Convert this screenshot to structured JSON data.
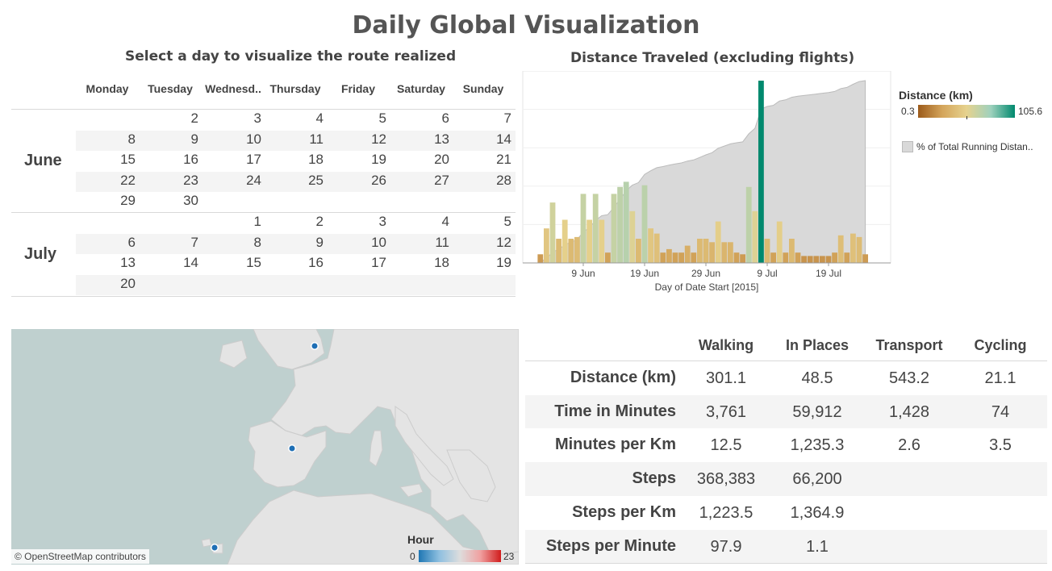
{
  "title": "Daily Global Visualization",
  "calendar": {
    "subtitle": "Select a day to visualize the route realized",
    "days": [
      "Monday",
      "Tuesday",
      "Wednesd..",
      "Thursday",
      "Friday",
      "Saturday",
      "Sunday"
    ],
    "months": [
      {
        "name": "June",
        "weeks": [
          [
            "",
            "2",
            "3",
            "4",
            "5",
            "6",
            "7"
          ],
          [
            "8",
            "9",
            "10",
            "11",
            "12",
            "13",
            "14"
          ],
          [
            "15",
            "16",
            "17",
            "18",
            "19",
            "20",
            "21"
          ],
          [
            "22",
            "23",
            "24",
            "25",
            "26",
            "27",
            "28"
          ],
          [
            "29",
            "30",
            "",
            "",
            "",
            "",
            ""
          ]
        ]
      },
      {
        "name": "July",
        "weeks": [
          [
            "",
            "",
            "1",
            "2",
            "3",
            "4",
            "5"
          ],
          [
            "6",
            "7",
            "8",
            "9",
            "10",
            "11",
            "12"
          ],
          [
            "13",
            "14",
            "15",
            "16",
            "17",
            "18",
            "19"
          ],
          [
            "20",
            "",
            "",
            "",
            "",
            "",
            ""
          ]
        ]
      }
    ]
  },
  "chart_data": {
    "type": "bar",
    "title": "Distance Traveled (excluding flights)",
    "xlabel": "Day of Date Start [2015]",
    "x_ticks": [
      "9 Jun",
      "19 Jun",
      "29 Jun",
      "9 Jul",
      "19 Jul"
    ],
    "start_date": "2015-06-02",
    "ylim": [
      0,
      105.6
    ],
    "values": [
      5,
      20,
      35,
      14,
      25,
      14,
      15,
      40,
      25,
      40,
      25,
      6,
      40,
      44,
      47,
      30,
      14,
      45,
      20,
      17,
      6,
      8,
      6,
      6,
      10,
      6,
      14,
      14,
      12,
      24,
      12,
      12,
      6,
      5,
      44,
      30,
      105.6,
      14,
      6,
      24,
      6,
      14,
      6,
      4,
      4,
      4,
      4,
      4,
      6,
      16,
      6,
      17,
      15,
      5
    ],
    "color_scale": {
      "title": "Distance (km)",
      "min_label": "0.3",
      "max_label": "105.6",
      "colors": [
        "#9c5a1a",
        "#d4a55b",
        "#e6d28e",
        "#9fd1bd",
        "#00896e"
      ]
    },
    "area_legend": "% of Total Running Distan..",
    "area_color": "#d9d9d9"
  },
  "map": {
    "credit": "© OpenStreetMap contributors",
    "legend_title": "Hour",
    "legend_min": "0",
    "legend_max": "23"
  },
  "summary": {
    "columns": [
      "Walking",
      "In Places",
      "Transport",
      "Cycling"
    ],
    "rows": [
      {
        "label": "Distance (km)",
        "values": [
          "301.1",
          "48.5",
          "543.2",
          "21.1"
        ]
      },
      {
        "label": "Time in Minutes",
        "values": [
          "3,761",
          "59,912",
          "1,428",
          "74"
        ]
      },
      {
        "label": "Minutes per Km",
        "values": [
          "12.5",
          "1,235.3",
          "2.6",
          "3.5"
        ]
      },
      {
        "label": "Steps",
        "values": [
          "368,383",
          "66,200",
          "",
          ""
        ]
      },
      {
        "label": "Steps per Km",
        "values": [
          "1,223.5",
          "1,364.9",
          "",
          ""
        ]
      },
      {
        "label": "Steps per Minute",
        "values": [
          "97.9",
          "1.1",
          "",
          ""
        ]
      }
    ]
  }
}
